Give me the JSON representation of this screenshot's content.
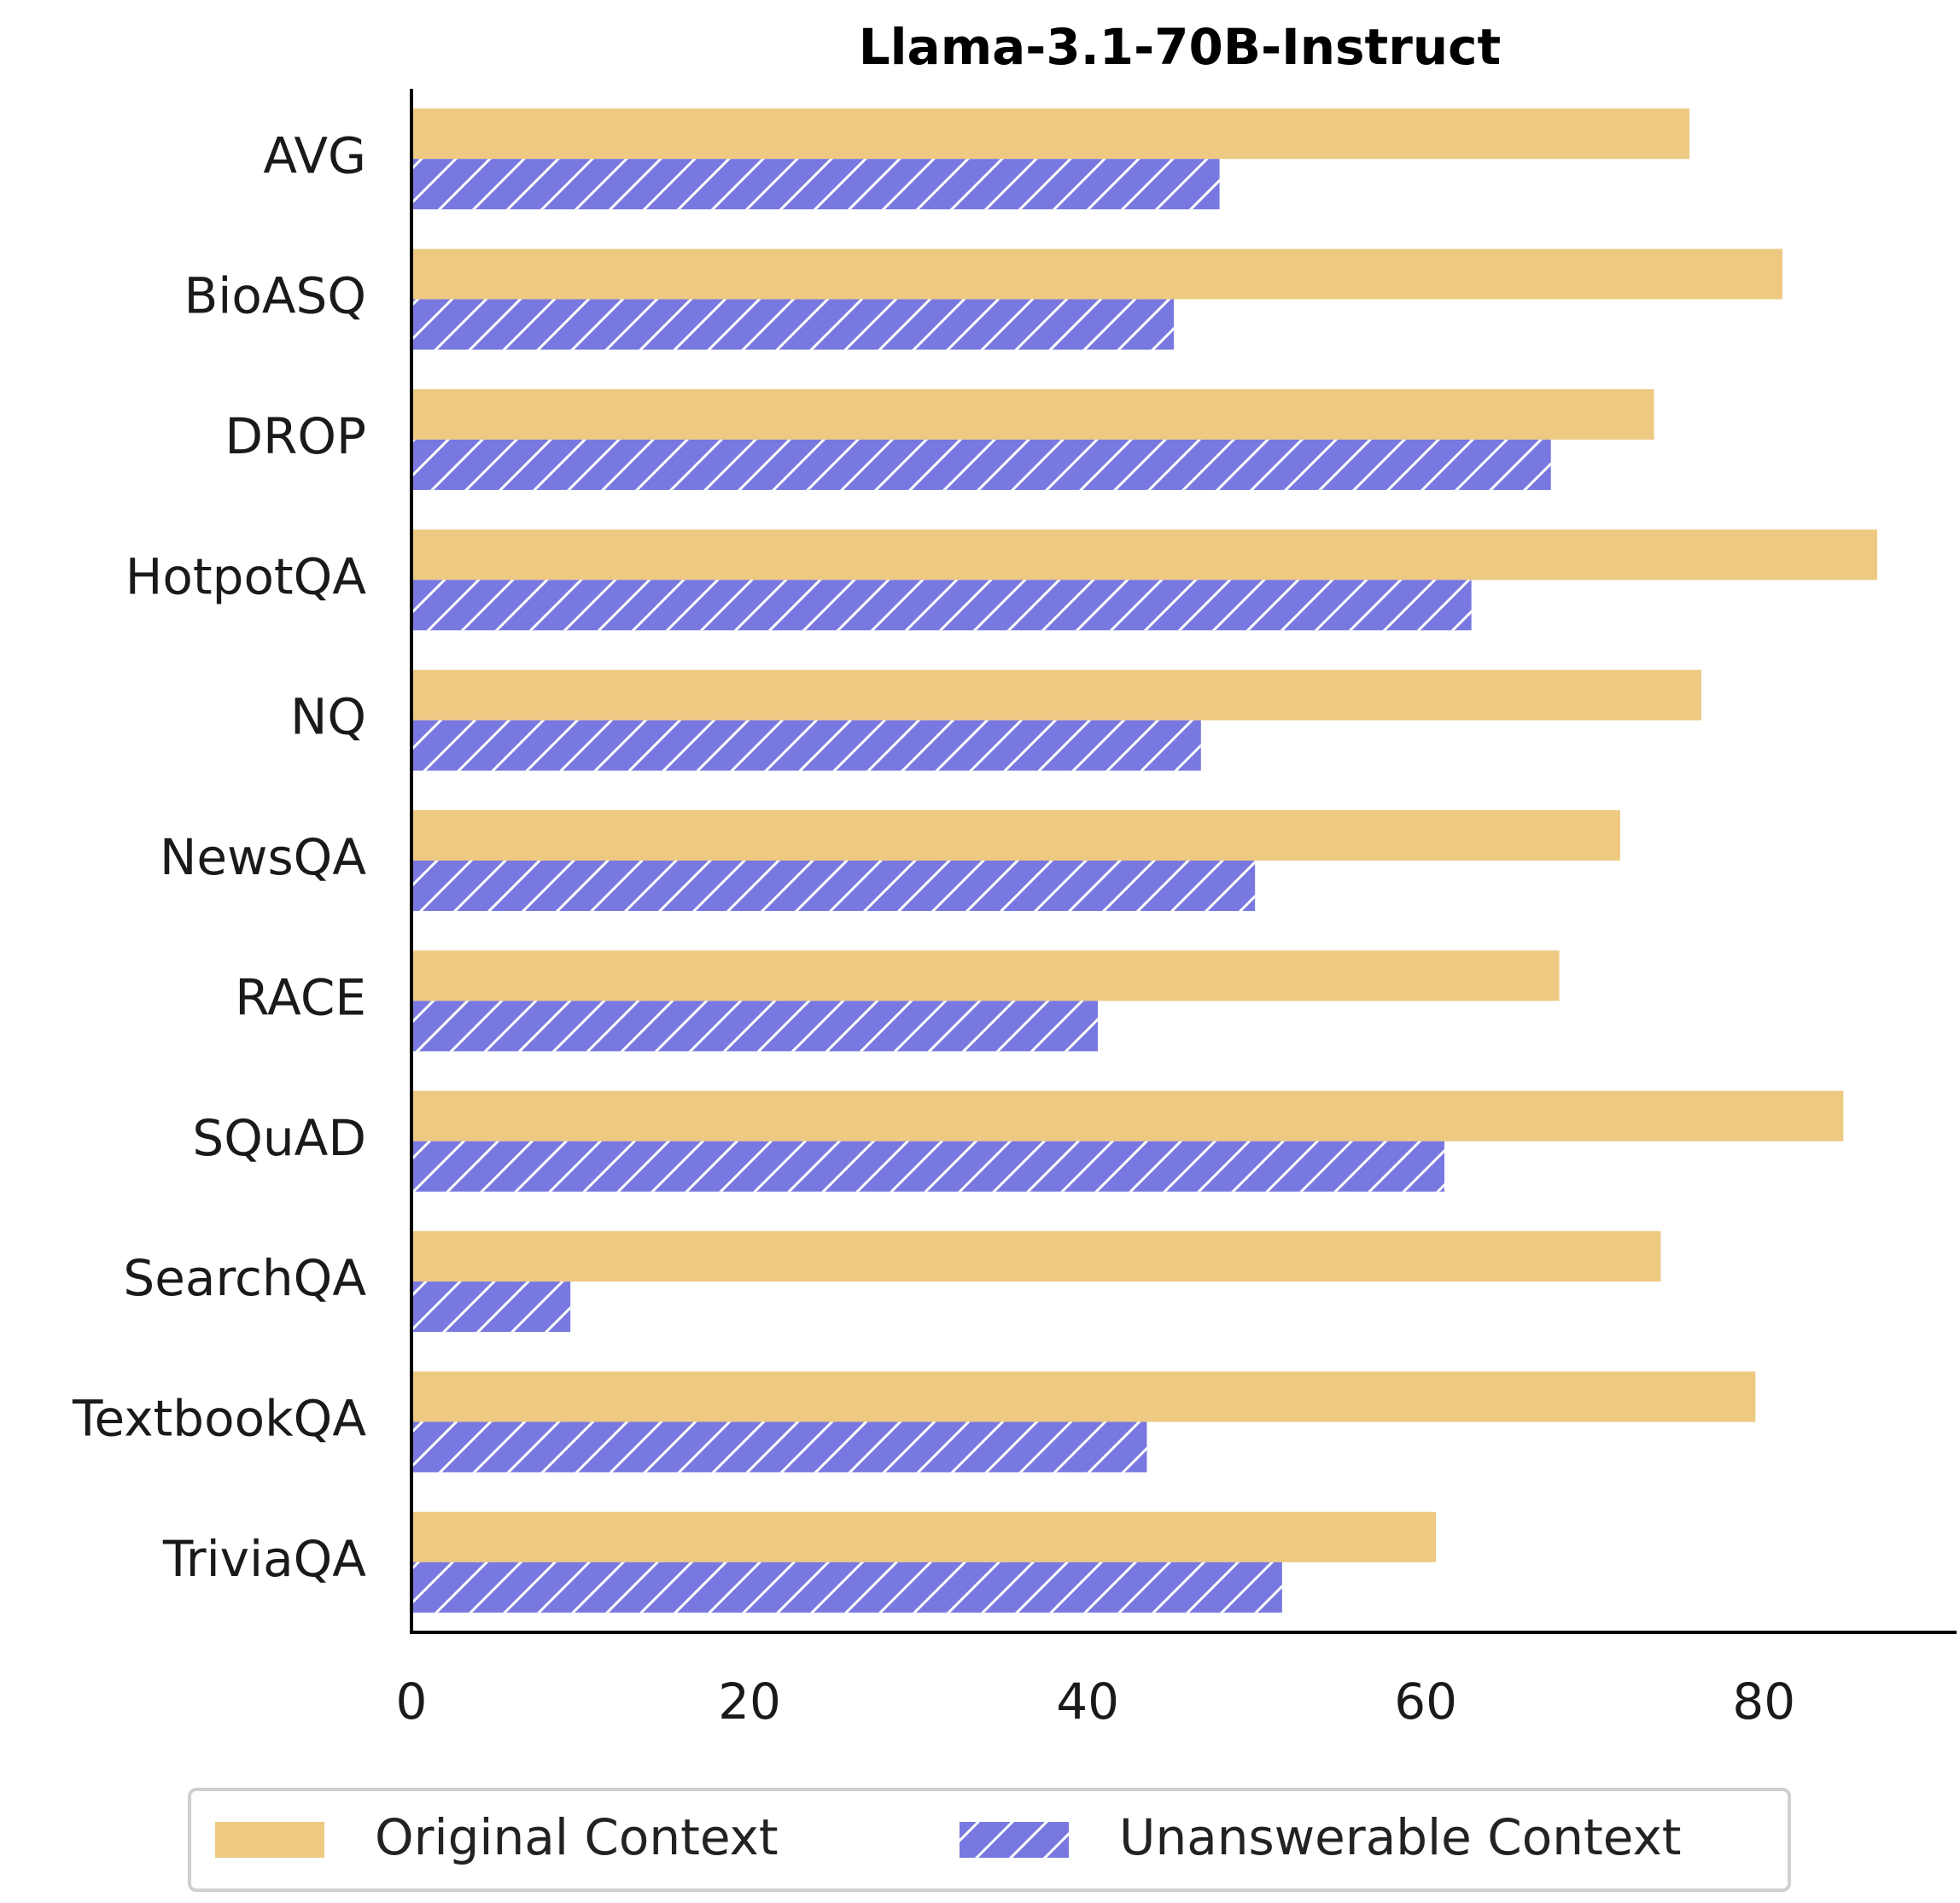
{
  "chart_data": {
    "type": "barh",
    "title": "Llama-3.1-70B-Instruct",
    "categories": [
      "AVG",
      "BioASQ",
      "DROP",
      "HotpotQA",
      "NQ",
      "NewsQA",
      "RACE",
      "SQuAD",
      "SearchQA",
      "TextbookQA",
      "TriviaQA"
    ],
    "series": [
      {
        "name": "Original Context",
        "color": "#edc982",
        "values": [
          75.6,
          81.1,
          73.5,
          86.7,
          76.3,
          71.5,
          67.9,
          84.7,
          73.9,
          79.5,
          60.6
        ]
      },
      {
        "name": "Unanswerable Context",
        "color": "#7878e0",
        "hatch": "/",
        "values": [
          47.8,
          45.1,
          67.4,
          62.7,
          46.7,
          49.9,
          40.6,
          61.1,
          9.4,
          43.5,
          51.5
        ]
      }
    ],
    "xlim": [
      0,
      91.4
    ],
    "xticks": [
      0,
      20,
      40,
      60,
      80
    ],
    "legend": "bottom"
  }
}
